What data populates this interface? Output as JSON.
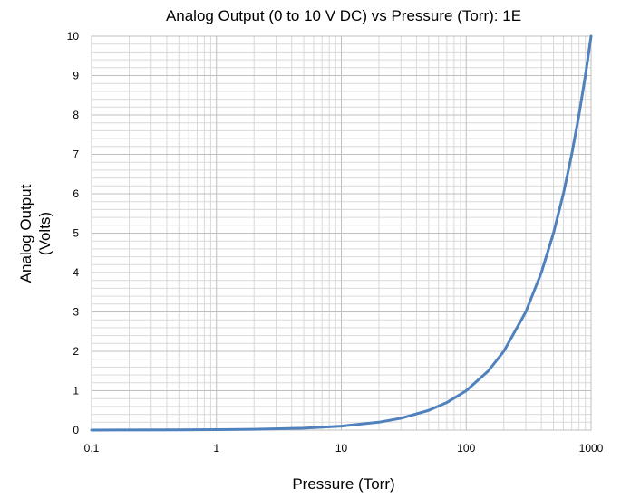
{
  "chart_data": {
    "type": "line",
    "title": "Analog Output (0 to 10 V DC) vs Pressure (Torr): 1E",
    "xlabel": "Pressure (Torr)",
    "ylabel_lines": [
      "Analog Output",
      "(Volts)"
    ],
    "x_scale": "log",
    "xlim": [
      0.1,
      1000
    ],
    "ylim": [
      0,
      10
    ],
    "x_ticks": [
      "0.1",
      "1",
      "10",
      "100",
      "1000"
    ],
    "y_ticks": [
      "0",
      "1",
      "2",
      "3",
      "4",
      "5",
      "6",
      "7",
      "8",
      "9",
      "10"
    ],
    "grid": true,
    "legend": "none",
    "series": [
      {
        "color": "#4f81bd",
        "x": [
          0.1,
          0.2,
          0.5,
          1,
          2,
          5,
          10,
          20,
          30,
          50,
          70,
          100,
          150,
          200,
          300,
          400,
          500,
          600,
          700,
          800,
          900,
          1000
        ],
        "y": [
          0.001,
          0.002,
          0.005,
          0.01,
          0.02,
          0.05,
          0.1,
          0.2,
          0.3,
          0.5,
          0.7,
          1.0,
          1.5,
          2.0,
          3.0,
          4.0,
          5.0,
          6.0,
          7.0,
          8.0,
          9.0,
          10.0
        ]
      }
    ]
  }
}
